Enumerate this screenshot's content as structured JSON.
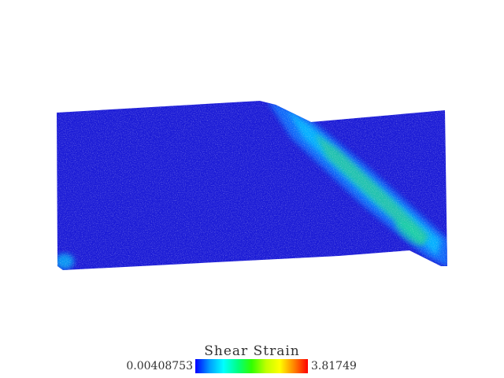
{
  "legend": {
    "title": "Shear Strain",
    "min": "0.00408753",
    "max": "3.81749",
    "colormap": [
      "#0000ff",
      "#00a0ff",
      "#00ffff",
      "#00ff80",
      "#30ff00",
      "#c0ff00",
      "#ffff00",
      "#ff8000",
      "#ff0000"
    ]
  },
  "specimen": {
    "base_color": "#1b1bd6",
    "band_colors": [
      "#0a78ff",
      "#00c8ff",
      "#18d8a0",
      "#3ad06a"
    ]
  }
}
